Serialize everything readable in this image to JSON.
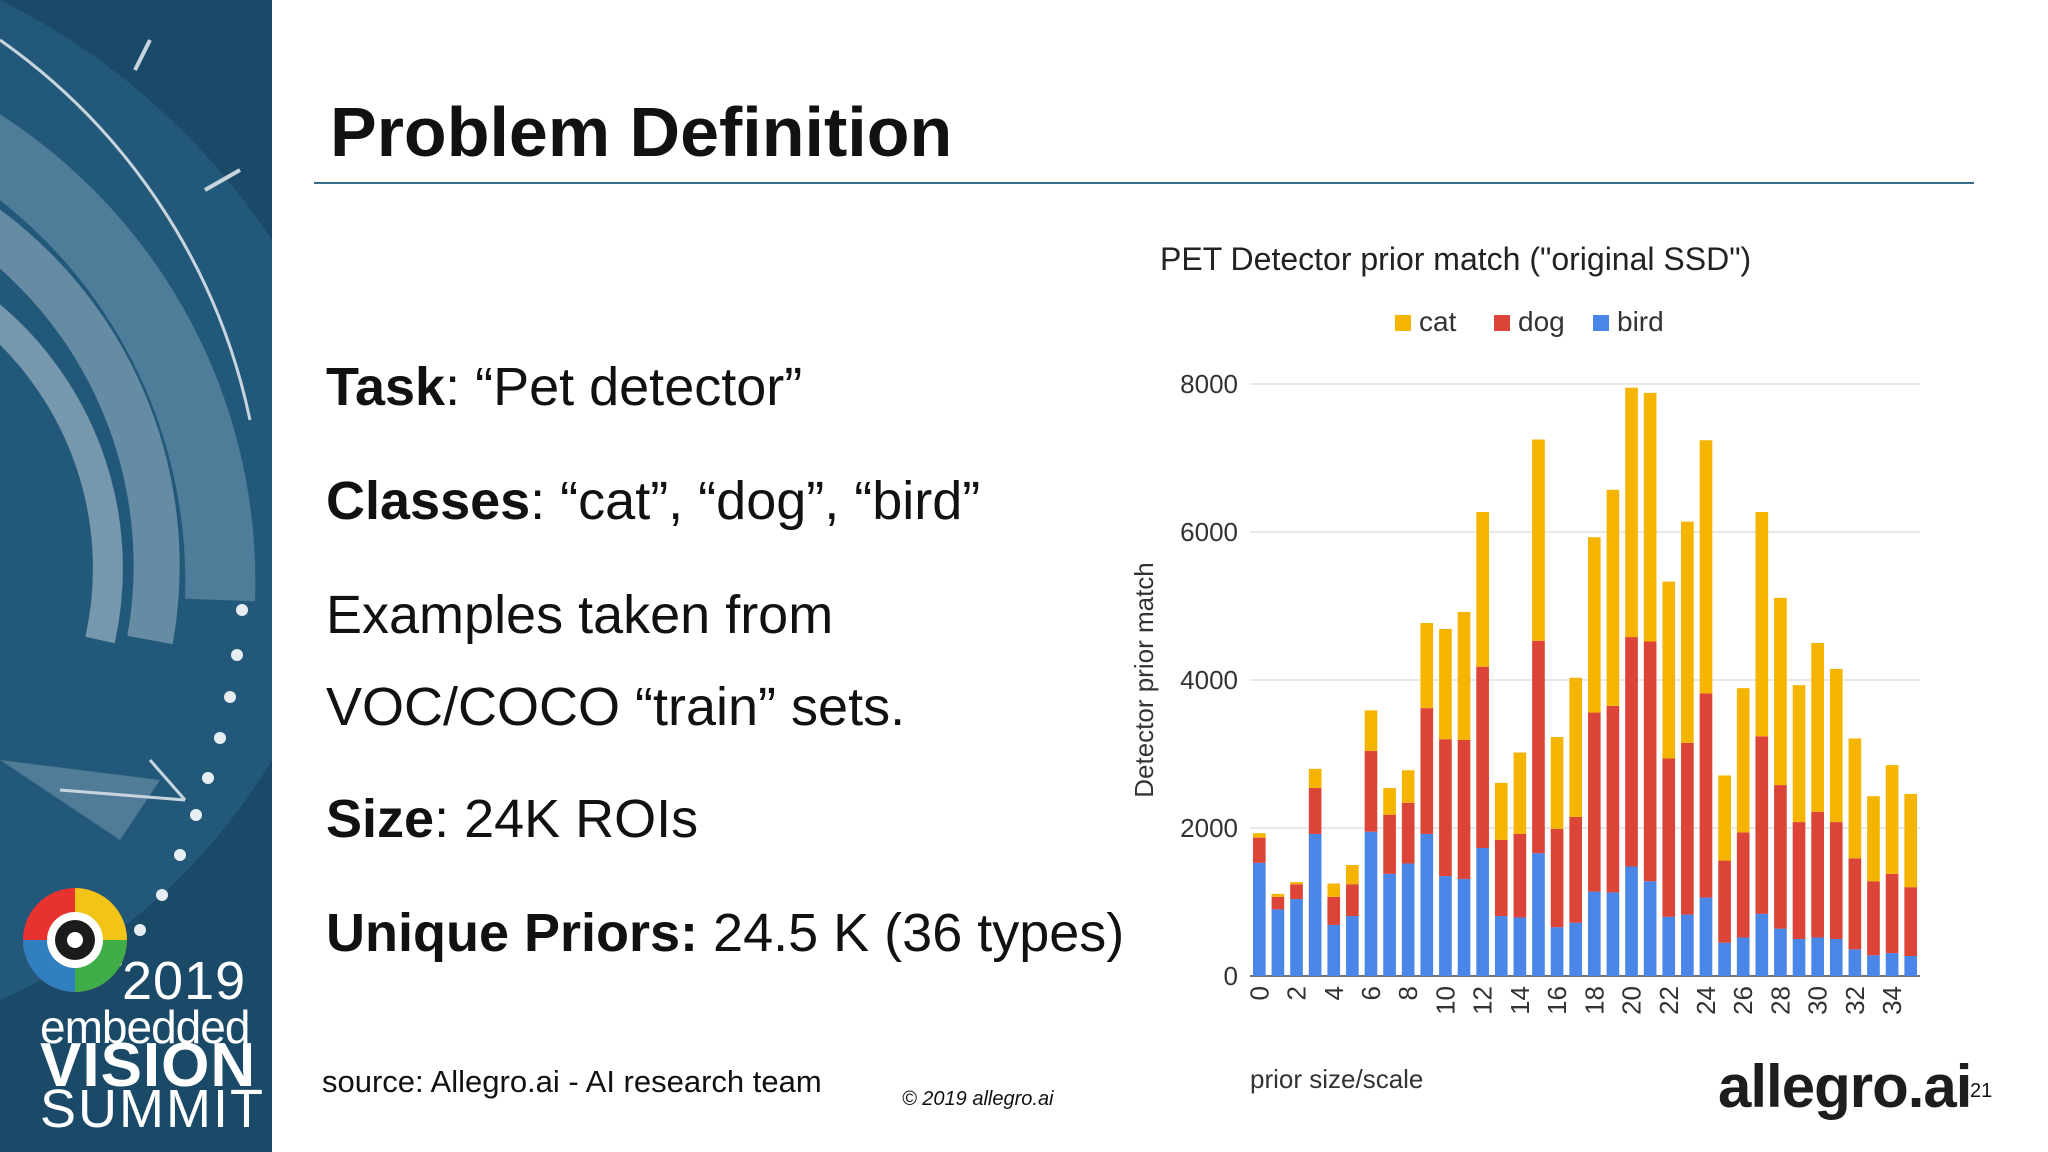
{
  "slide": {
    "title": "Problem Definition",
    "task_label": "Task",
    "task_value": ": “Pet detector”",
    "classes_label": "Classes",
    "classes_value": ": “cat”, “dog”, “bird”",
    "examples_line1": "Examples taken from",
    "examples_line2": "VOC/COCO “train” sets.",
    "size_label": "Size",
    "size_value": ": 24K ROIs",
    "priors_label": "Unique Priors:",
    "priors_value": " 24.5 K (36 types)",
    "source": "source: Allegro.ai - AI research team",
    "copyright": "© 2019 allegro.ai",
    "logo": "allegro.ai",
    "page_number": "21"
  },
  "sidebar": {
    "year": "2019",
    "embedded": "embedded",
    "vision": "VISION",
    "summit": "SUMMIT",
    "background_color": "#1a4a68"
  },
  "chart_data": {
    "type": "bar",
    "stacked": true,
    "title": "PET Detector prior match (\"original SSD\")",
    "xlabel": "prior size/scale",
    "ylabel": "Detector prior match",
    "ylim": [
      0,
      8000
    ],
    "yticks": [
      0,
      2000,
      4000,
      6000,
      8000
    ],
    "grid": true,
    "legend_position": "top-center",
    "categories": [
      "0",
      "1",
      "2",
      "3",
      "4",
      "5",
      "6",
      "7",
      "8",
      "9",
      "10",
      "11",
      "12",
      "13",
      "14",
      "15",
      "16",
      "17",
      "18",
      "19",
      "20",
      "21",
      "22",
      "23",
      "24",
      "25",
      "26",
      "27",
      "28",
      "29",
      "30",
      "31",
      "32",
      "33",
      "34",
      "35"
    ],
    "xtick_labels": [
      "0",
      "2",
      "4",
      "6",
      "8",
      "10",
      "12",
      "14",
      "16",
      "18",
      "20",
      "22",
      "24",
      "26",
      "28",
      "30",
      "32",
      "34"
    ],
    "series": [
      {
        "name": "bird",
        "color": "#4a86e8",
        "values": [
          1530,
          900,
          1040,
          1920,
          690,
          810,
          1950,
          1380,
          1520,
          1920,
          1350,
          1310,
          1730,
          810,
          790,
          1660,
          660,
          720,
          1140,
          1130,
          1480,
          1280,
          800,
          830,
          1060,
          450,
          520,
          840,
          640,
          500,
          520,
          500,
          360,
          280,
          310,
          270
        ]
      },
      {
        "name": "dog",
        "color": "#db4437",
        "values": [
          340,
          170,
          200,
          620,
          380,
          430,
          1090,
          800,
          820,
          1700,
          1850,
          1880,
          2450,
          1030,
          1130,
          2870,
          1330,
          1430,
          2420,
          2520,
          3100,
          3240,
          2140,
          2320,
          2760,
          1110,
          1420,
          2400,
          1940,
          1580,
          1700,
          1580,
          1230,
          1000,
          1070,
          930
        ]
      },
      {
        "name": "cat",
        "color": "#f4b400",
        "values": [
          60,
          40,
          30,
          260,
          180,
          260,
          550,
          360,
          440,
          1150,
          1490,
          1730,
          2090,
          770,
          1100,
          2720,
          1240,
          1880,
          2370,
          2920,
          3370,
          3360,
          2390,
          2990,
          3420,
          1150,
          1950,
          3030,
          2530,
          1850,
          2280,
          2070,
          1620,
          1150,
          1470,
          1260
        ]
      }
    ]
  }
}
